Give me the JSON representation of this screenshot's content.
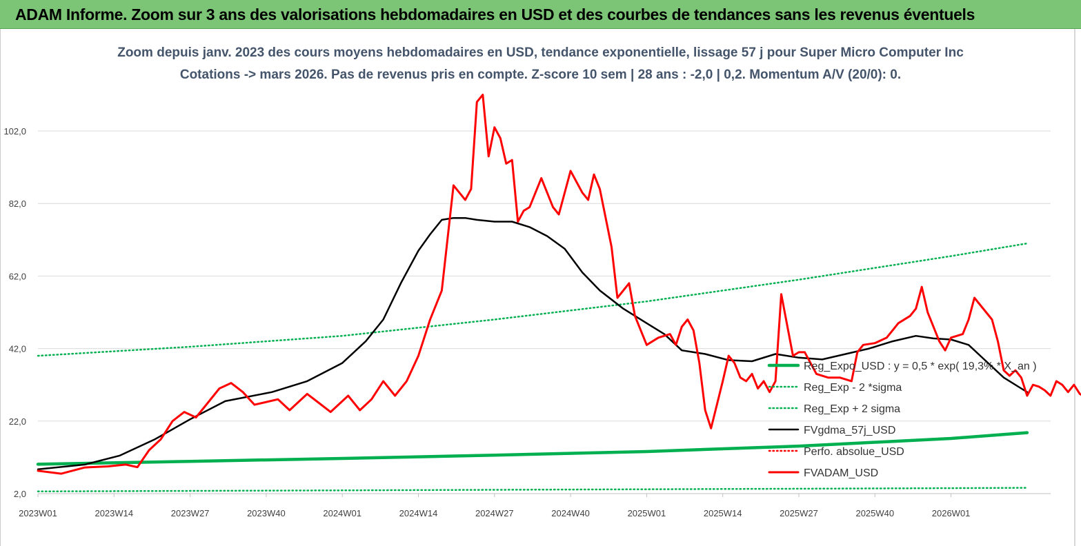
{
  "banner": {
    "title": "ADAM Informe. Zoom sur 3 ans des valorisations hebdomadaires en USD et des courbes de tendances sans les revenus éventuels"
  },
  "chart_data": {
    "type": "line",
    "title": "Zoom depuis janv. 2023 des cours moyens hebdomadaires en USD, tendance exponentielle, lissage 57 j pour Super Micro Computer Inc",
    "subtitle": "Cotations -> mars 2026. Pas de revenus pris en compte. Z-score 10 sem | 28 ans : -2,0 | 0,2. Momentum A/V (20/0): 0.",
    "xlabel": "",
    "ylabel": "",
    "ylim": [
      2,
      102
    ],
    "y_ticks": [
      "2,0",
      "22,0",
      "42,0",
      "62,0",
      "82,0",
      "102,0"
    ],
    "x_ticks": [
      "2023W01",
      "2023W14",
      "2023W27",
      "2023W40",
      "2024W01",
      "2024W14",
      "2024W27",
      "2024W40",
      "2025W01",
      "2025W14",
      "2025W27",
      "2025W40",
      "2026W01"
    ],
    "x_range_weeks": [
      0,
      169
    ],
    "grid": "horizontal",
    "legend_position": "right",
    "legend": [
      {
        "label": "Reg_Expo_USD : y = 0,5  * exp( 19,3% *  X_an )",
        "color": "#00b050",
        "style": "solid-thick"
      },
      {
        "label": "Reg_Exp - 2 *sigma",
        "color": "#00b050",
        "style": "dotted"
      },
      {
        "label": "Reg_Exp + 2 sigma",
        "color": "#00b050",
        "style": "dotted"
      },
      {
        "label": "FVgdma_57j_USD",
        "color": "#000000",
        "style": "solid"
      },
      {
        "label": "Perfo. absolue_USD",
        "color": "#ff0000",
        "style": "dotted"
      },
      {
        "label": "FVADAM_USD",
        "color": "#ff0000",
        "style": "solid-thick"
      }
    ],
    "series": [
      {
        "name": "Reg_Expo_USD : y = 0,5  * exp( 19,3% *  X_an )",
        "color": "#00b050",
        "points": [
          [
            0,
            10.1
          ],
          [
            26,
            10.9
          ],
          [
            52,
            11.7
          ],
          [
            78,
            12.6
          ],
          [
            104,
            13.6
          ],
          [
            130,
            15.1
          ],
          [
            156,
            17.2
          ],
          [
            169,
            18.8
          ]
        ]
      },
      {
        "name": "Reg_Exp - 2 *sigma",
        "color": "#00b050",
        "points": [
          [
            0,
            2.6
          ],
          [
            52,
            2.9
          ],
          [
            104,
            3.2
          ],
          [
            156,
            3.5
          ],
          [
            169,
            3.6
          ]
        ]
      },
      {
        "name": "Reg_Exp + 2 sigma",
        "color": "#00b050",
        "points": [
          [
            0,
            40
          ],
          [
            26,
            42.5
          ],
          [
            52,
            45.5
          ],
          [
            78,
            50
          ],
          [
            104,
            55
          ],
          [
            130,
            61
          ],
          [
            156,
            67.5
          ],
          [
            169,
            71
          ]
        ]
      },
      {
        "name": "FVgdma_57j_USD",
        "color": "#000000",
        "points": [
          [
            0,
            8.7
          ],
          [
            8,
            10
          ],
          [
            14,
            12.5
          ],
          [
            20,
            17
          ],
          [
            26,
            22.5
          ],
          [
            32,
            27.5
          ],
          [
            40,
            30
          ],
          [
            46,
            33
          ],
          [
            52,
            38
          ],
          [
            56,
            44
          ],
          [
            59,
            50
          ],
          [
            62,
            60
          ],
          [
            65,
            69
          ],
          [
            67,
            73.5
          ],
          [
            69,
            77.5
          ],
          [
            71,
            78
          ],
          [
            73,
            78
          ],
          [
            75,
            77.5
          ],
          [
            78,
            77
          ],
          [
            81,
            77
          ],
          [
            84,
            75.5
          ],
          [
            87,
            73
          ],
          [
            90,
            69.5
          ],
          [
            93,
            63
          ],
          [
            96,
            58
          ],
          [
            100,
            53
          ],
          [
            104,
            49
          ],
          [
            107,
            46
          ],
          [
            110,
            41.5
          ],
          [
            114,
            40.5
          ],
          [
            118,
            38.8
          ],
          [
            122,
            38.5
          ],
          [
            126,
            40.5
          ],
          [
            130,
            39.5
          ],
          [
            134,
            39
          ],
          [
            138,
            40.5
          ],
          [
            142,
            42
          ],
          [
            146,
            44
          ],
          [
            150,
            45.5
          ],
          [
            153,
            44.8
          ],
          [
            156,
            44.5
          ],
          [
            159,
            43
          ],
          [
            162,
            38.5
          ],
          [
            165,
            34
          ],
          [
            168,
            31
          ],
          [
            169,
            30
          ]
        ]
      },
      {
        "name": "FVADAM_USD",
        "color": "#ff0000",
        "points": [
          [
            0,
            8.3
          ],
          [
            4,
            7.5
          ],
          [
            8,
            9.2
          ],
          [
            12,
            9.5
          ],
          [
            15,
            10
          ],
          [
            17,
            9.3
          ],
          [
            19,
            14
          ],
          [
            21,
            17
          ],
          [
            23,
            22
          ],
          [
            25,
            24.5
          ],
          [
            27,
            23
          ],
          [
            29,
            27
          ],
          [
            31,
            31
          ],
          [
            33,
            32.5
          ],
          [
            35,
            30
          ],
          [
            37,
            26.5
          ],
          [
            41,
            28
          ],
          [
            43,
            25
          ],
          [
            46,
            29.5
          ],
          [
            48,
            27
          ],
          [
            50,
            24.5
          ],
          [
            53,
            29
          ],
          [
            55,
            25
          ],
          [
            57,
            28
          ],
          [
            59,
            33
          ],
          [
            61,
            29
          ],
          [
            63,
            33
          ],
          [
            65,
            40
          ],
          [
            67,
            50
          ],
          [
            69,
            58
          ],
          [
            71,
            87
          ],
          [
            73,
            83
          ],
          [
            74,
            86
          ],
          [
            75,
            110
          ],
          [
            76,
            112
          ],
          [
            77,
            95
          ],
          [
            78,
            103
          ],
          [
            79,
            100
          ],
          [
            80,
            93
          ],
          [
            81,
            94
          ],
          [
            82,
            77
          ],
          [
            83,
            80
          ],
          [
            84,
            81
          ],
          [
            86,
            89
          ],
          [
            88,
            81
          ],
          [
            89,
            79
          ],
          [
            91,
            91
          ],
          [
            93,
            85
          ],
          [
            94,
            83
          ],
          [
            95,
            90
          ],
          [
            96,
            86
          ],
          [
            98,
            70
          ],
          [
            99,
            56
          ],
          [
            101,
            60
          ],
          [
            102,
            51
          ],
          [
            104,
            43
          ],
          [
            106,
            45
          ],
          [
            108,
            46
          ],
          [
            109,
            43
          ],
          [
            110,
            48
          ],
          [
            111,
            50
          ],
          [
            112,
            47
          ],
          [
            113,
            38
          ],
          [
            114,
            25
          ],
          [
            115,
            20
          ],
          [
            117,
            33
          ],
          [
            118,
            40
          ],
          [
            119,
            38
          ],
          [
            120,
            34
          ],
          [
            121,
            33
          ],
          [
            122,
            35
          ],
          [
            123,
            31
          ],
          [
            124,
            33
          ],
          [
            125,
            30
          ],
          [
            126,
            33
          ],
          [
            127,
            57
          ],
          [
            129,
            40
          ],
          [
            130,
            41
          ],
          [
            131,
            41
          ],
          [
            133,
            35
          ],
          [
            135,
            34
          ],
          [
            137,
            34
          ],
          [
            139,
            33
          ],
          [
            140,
            41
          ],
          [
            141,
            43
          ],
          [
            143,
            43.5
          ],
          [
            145,
            45
          ],
          [
            146,
            47
          ],
          [
            147,
            49
          ],
          [
            149,
            51
          ],
          [
            150,
            53
          ],
          [
            151,
            59
          ],
          [
            152,
            52
          ],
          [
            154,
            44
          ],
          [
            155,
            41.5
          ],
          [
            156,
            45
          ],
          [
            158,
            46
          ],
          [
            159,
            50
          ],
          [
            160,
            56
          ],
          [
            161,
            54
          ],
          [
            162,
            52
          ],
          [
            163,
            50
          ],
          [
            164,
            44
          ],
          [
            165,
            36
          ],
          [
            166,
            34.5
          ],
          [
            167,
            36
          ],
          [
            168,
            34
          ],
          [
            169,
            29
          ],
          [
            170,
            32
          ],
          [
            171,
            31.5
          ],
          [
            172,
            30.5
          ],
          [
            173,
            29
          ],
          [
            174,
            33
          ],
          [
            175,
            32
          ],
          [
            176,
            30
          ],
          [
            177,
            32
          ],
          [
            178,
            29.5
          ],
          [
            179,
            28.5
          ],
          [
            180,
            21
          ]
        ]
      }
    ]
  }
}
